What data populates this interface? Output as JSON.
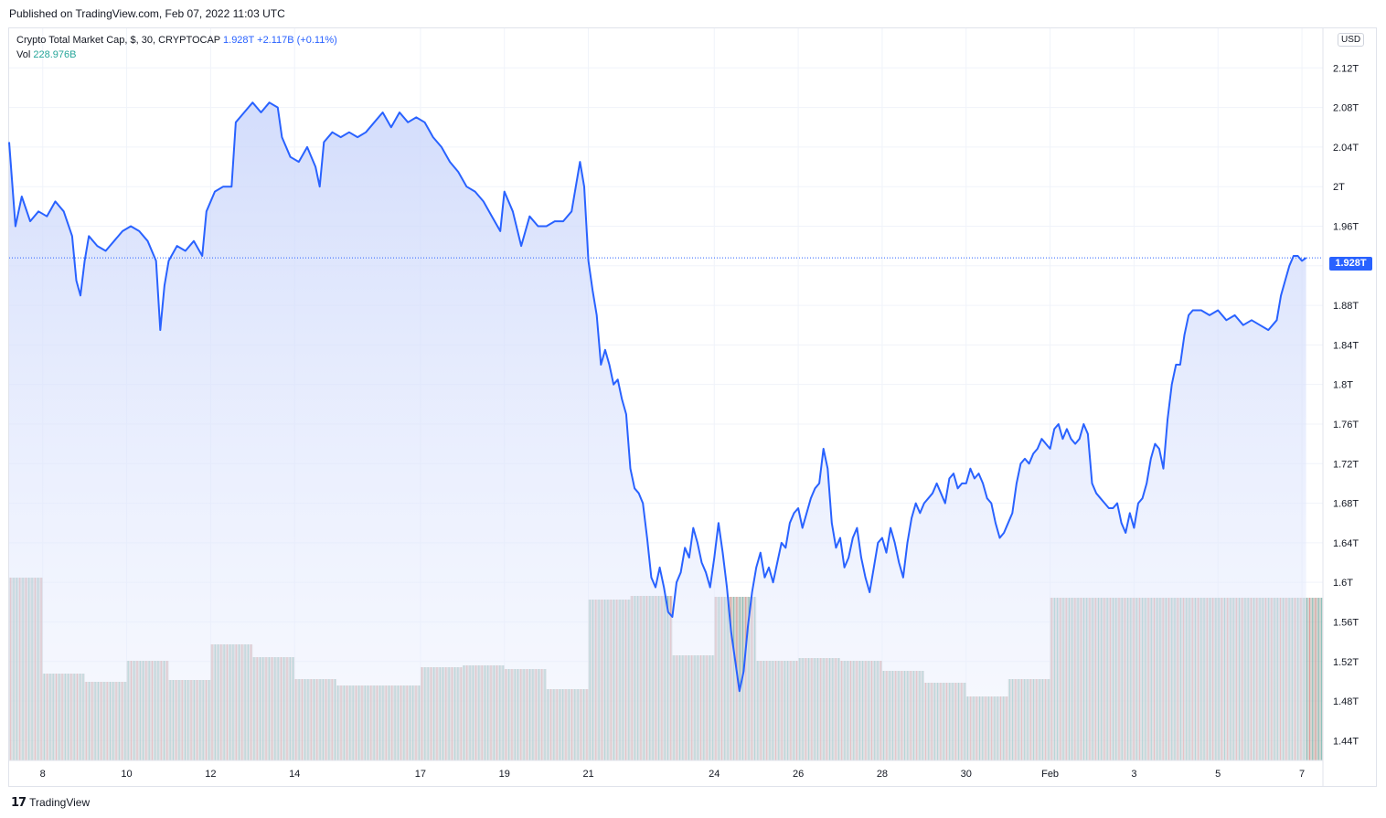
{
  "header": {
    "published": "Published on TradingView.com, Feb 07, 2022 11:03 UTC"
  },
  "legend": {
    "symbol": "Crypto Total Market Cap, $, 30, CRYPTOCAP",
    "last": "1.928T",
    "change": "+2.117B (+0.11%)",
    "vol_label": "Vol",
    "vol_value": "228.976B"
  },
  "price_axis": {
    "currency": "USD",
    "last_badge": "1.928T"
  },
  "footer": {
    "brand": "TradingView",
    "brand_icon": "tradingview-logo-icon"
  },
  "colors": {
    "line": "#2962ff",
    "fill_top": "#c9d5fb",
    "vol_up": "#26a69a",
    "vol_down": "#ef5350"
  },
  "chart_data": {
    "type": "area",
    "title": "Crypto Total Market Cap, $, 30, CRYPTOCAP",
    "unit": "T",
    "ylim": [
      1.42,
      2.16
    ],
    "y_ticks": [
      "2.12T",
      "2.08T",
      "2.04T",
      "2T",
      "1.96T",
      "1.92T",
      "1.88T",
      "1.84T",
      "1.8T",
      "1.76T",
      "1.72T",
      "1.68T",
      "1.64T",
      "1.6T",
      "1.56T",
      "1.52T",
      "1.48T",
      "1.44T"
    ],
    "y_tick_values": [
      2.12,
      2.08,
      2.04,
      2.0,
      1.96,
      1.92,
      1.88,
      1.84,
      1.8,
      1.76,
      1.72,
      1.68,
      1.64,
      1.6,
      1.56,
      1.52,
      1.48,
      1.44
    ],
    "x_ticks": [
      "8",
      "10",
      "12",
      "14",
      "17",
      "19",
      "21",
      "24",
      "26",
      "28",
      "30",
      "Feb",
      "3",
      "5",
      "7"
    ],
    "x_tick_days": [
      8,
      10,
      12,
      14,
      17,
      19,
      21,
      24,
      26,
      28,
      30,
      32,
      34,
      36,
      38
    ],
    "x_range_days": [
      7.2,
      38.5
    ],
    "series": [
      {
        "points": [
          [
            7.2,
            2.045
          ],
          [
            7.35,
            1.96
          ],
          [
            7.5,
            1.99
          ],
          [
            7.7,
            1.965
          ],
          [
            7.9,
            1.975
          ],
          [
            8.1,
            1.97
          ],
          [
            8.3,
            1.985
          ],
          [
            8.5,
            1.975
          ],
          [
            8.7,
            1.95
          ],
          [
            8.8,
            1.905
          ],
          [
            8.9,
            1.89
          ],
          [
            9.0,
            1.925
          ],
          [
            9.1,
            1.95
          ],
          [
            9.3,
            1.94
          ],
          [
            9.5,
            1.935
          ],
          [
            9.7,
            1.945
          ],
          [
            9.9,
            1.955
          ],
          [
            10.1,
            1.96
          ],
          [
            10.3,
            1.955
          ],
          [
            10.5,
            1.945
          ],
          [
            10.7,
            1.925
          ],
          [
            10.8,
            1.855
          ],
          [
            10.9,
            1.9
          ],
          [
            11.0,
            1.925
          ],
          [
            11.2,
            1.94
          ],
          [
            11.4,
            1.935
          ],
          [
            11.6,
            1.945
          ],
          [
            11.8,
            1.93
          ],
          [
            11.9,
            1.975
          ],
          [
            12.1,
            1.995
          ],
          [
            12.3,
            2.0
          ],
          [
            12.5,
            2.0
          ],
          [
            12.6,
            2.065
          ],
          [
            12.8,
            2.075
          ],
          [
            13.0,
            2.085
          ],
          [
            13.2,
            2.075
          ],
          [
            13.4,
            2.085
          ],
          [
            13.6,
            2.08
          ],
          [
            13.7,
            2.05
          ],
          [
            13.9,
            2.03
          ],
          [
            14.1,
            2.025
          ],
          [
            14.3,
            2.04
          ],
          [
            14.5,
            2.02
          ],
          [
            14.6,
            2.0
          ],
          [
            14.7,
            2.045
          ],
          [
            14.9,
            2.055
          ],
          [
            15.1,
            2.05
          ],
          [
            15.3,
            2.055
          ],
          [
            15.5,
            2.05
          ],
          [
            15.7,
            2.055
          ],
          [
            15.9,
            2.065
          ],
          [
            16.1,
            2.075
          ],
          [
            16.3,
            2.06
          ],
          [
            16.5,
            2.075
          ],
          [
            16.7,
            2.065
          ],
          [
            16.9,
            2.07
          ],
          [
            17.1,
            2.065
          ],
          [
            17.3,
            2.05
          ],
          [
            17.5,
            2.04
          ],
          [
            17.7,
            2.025
          ],
          [
            17.9,
            2.015
          ],
          [
            18.1,
            2.0
          ],
          [
            18.3,
            1.995
          ],
          [
            18.5,
            1.985
          ],
          [
            18.7,
            1.97
          ],
          [
            18.9,
            1.955
          ],
          [
            19.0,
            1.995
          ],
          [
            19.2,
            1.975
          ],
          [
            19.4,
            1.94
          ],
          [
            19.6,
            1.97
          ],
          [
            19.8,
            1.96
          ],
          [
            20.0,
            1.96
          ],
          [
            20.2,
            1.965
          ],
          [
            20.4,
            1.965
          ],
          [
            20.6,
            1.975
          ],
          [
            20.8,
            2.025
          ],
          [
            20.9,
            2.0
          ],
          [
            21.0,
            1.925
          ],
          [
            21.1,
            1.895
          ],
          [
            21.2,
            1.87
          ],
          [
            21.3,
            1.82
          ],
          [
            21.4,
            1.835
          ],
          [
            21.5,
            1.82
          ],
          [
            21.6,
            1.8
          ],
          [
            21.7,
            1.805
          ],
          [
            21.8,
            1.785
          ],
          [
            21.9,
            1.77
          ],
          [
            22.0,
            1.715
          ],
          [
            22.1,
            1.695
          ],
          [
            22.2,
            1.69
          ],
          [
            22.3,
            1.68
          ],
          [
            22.4,
            1.645
          ],
          [
            22.5,
            1.605
          ],
          [
            22.6,
            1.595
          ],
          [
            22.7,
            1.615
          ],
          [
            22.8,
            1.595
          ],
          [
            22.9,
            1.57
          ],
          [
            23.0,
            1.565
          ],
          [
            23.1,
            1.6
          ],
          [
            23.2,
            1.61
          ],
          [
            23.3,
            1.635
          ],
          [
            23.4,
            1.625
          ],
          [
            23.5,
            1.655
          ],
          [
            23.6,
            1.64
          ],
          [
            23.7,
            1.62
          ],
          [
            23.8,
            1.61
          ],
          [
            23.9,
            1.595
          ],
          [
            24.0,
            1.625
          ],
          [
            24.1,
            1.66
          ],
          [
            24.2,
            1.63
          ],
          [
            24.3,
            1.595
          ],
          [
            24.4,
            1.55
          ],
          [
            24.5,
            1.52
          ],
          [
            24.6,
            1.49
          ],
          [
            24.7,
            1.51
          ],
          [
            24.8,
            1.555
          ],
          [
            24.9,
            1.59
          ],
          [
            25.0,
            1.615
          ],
          [
            25.1,
            1.63
          ],
          [
            25.2,
            1.605
          ],
          [
            25.3,
            1.615
          ],
          [
            25.4,
            1.6
          ],
          [
            25.5,
            1.62
          ],
          [
            25.6,
            1.64
          ],
          [
            25.7,
            1.635
          ],
          [
            25.8,
            1.66
          ],
          [
            25.9,
            1.67
          ],
          [
            26.0,
            1.675
          ],
          [
            26.1,
            1.655
          ],
          [
            26.2,
            1.67
          ],
          [
            26.3,
            1.685
          ],
          [
            26.4,
            1.695
          ],
          [
            26.5,
            1.7
          ],
          [
            26.6,
            1.735
          ],
          [
            26.7,
            1.715
          ],
          [
            26.8,
            1.66
          ],
          [
            26.9,
            1.635
          ],
          [
            27.0,
            1.645
          ],
          [
            27.1,
            1.615
          ],
          [
            27.2,
            1.625
          ],
          [
            27.3,
            1.645
          ],
          [
            27.4,
            1.655
          ],
          [
            27.5,
            1.625
          ],
          [
            27.6,
            1.605
          ],
          [
            27.7,
            1.59
          ],
          [
            27.8,
            1.615
          ],
          [
            27.9,
            1.64
          ],
          [
            28.0,
            1.645
          ],
          [
            28.1,
            1.63
          ],
          [
            28.2,
            1.655
          ],
          [
            28.3,
            1.64
          ],
          [
            28.4,
            1.62
          ],
          [
            28.5,
            1.605
          ],
          [
            28.6,
            1.64
          ],
          [
            28.7,
            1.665
          ],
          [
            28.8,
            1.68
          ],
          [
            28.9,
            1.67
          ],
          [
            29.0,
            1.68
          ],
          [
            29.1,
            1.685
          ],
          [
            29.2,
            1.69
          ],
          [
            29.3,
            1.7
          ],
          [
            29.4,
            1.69
          ],
          [
            29.5,
            1.68
          ],
          [
            29.6,
            1.705
          ],
          [
            29.7,
            1.71
          ],
          [
            29.8,
            1.695
          ],
          [
            29.9,
            1.7
          ],
          [
            30.0,
            1.7
          ],
          [
            30.1,
            1.715
          ],
          [
            30.2,
            1.705
          ],
          [
            30.3,
            1.71
          ],
          [
            30.4,
            1.7
          ],
          [
            30.5,
            1.685
          ],
          [
            30.6,
            1.68
          ],
          [
            30.7,
            1.66
          ],
          [
            30.8,
            1.645
          ],
          [
            30.9,
            1.65
          ],
          [
            31.0,
            1.66
          ],
          [
            31.1,
            1.67
          ],
          [
            31.2,
            1.7
          ],
          [
            31.3,
            1.72
          ],
          [
            31.4,
            1.725
          ],
          [
            31.5,
            1.72
          ],
          [
            31.6,
            1.73
          ],
          [
            31.7,
            1.735
          ],
          [
            31.8,
            1.745
          ],
          [
            31.9,
            1.74
          ],
          [
            32.0,
            1.735
          ],
          [
            32.1,
            1.755
          ],
          [
            32.2,
            1.76
          ],
          [
            32.3,
            1.745
          ],
          [
            32.4,
            1.755
          ],
          [
            32.5,
            1.745
          ],
          [
            32.6,
            1.74
          ],
          [
            32.7,
            1.745
          ],
          [
            32.8,
            1.76
          ],
          [
            32.9,
            1.75
          ],
          [
            33.0,
            1.7
          ],
          [
            33.1,
            1.69
          ],
          [
            33.2,
            1.685
          ],
          [
            33.3,
            1.68
          ],
          [
            33.4,
            1.675
          ],
          [
            33.5,
            1.675
          ],
          [
            33.6,
            1.68
          ],
          [
            33.7,
            1.66
          ],
          [
            33.8,
            1.65
          ],
          [
            33.9,
            1.67
          ],
          [
            34.0,
            1.655
          ],
          [
            34.1,
            1.68
          ],
          [
            34.2,
            1.685
          ],
          [
            34.3,
            1.7
          ],
          [
            34.4,
            1.725
          ],
          [
            34.5,
            1.74
          ],
          [
            34.6,
            1.735
          ],
          [
            34.7,
            1.715
          ],
          [
            34.8,
            1.765
          ],
          [
            34.9,
            1.8
          ],
          [
            35.0,
            1.82
          ],
          [
            35.1,
            1.82
          ],
          [
            35.2,
            1.85
          ],
          [
            35.3,
            1.87
          ],
          [
            35.4,
            1.875
          ],
          [
            35.6,
            1.875
          ],
          [
            35.8,
            1.87
          ],
          [
            36.0,
            1.875
          ],
          [
            36.2,
            1.865
          ],
          [
            36.4,
            1.87
          ],
          [
            36.6,
            1.86
          ],
          [
            36.8,
            1.865
          ],
          [
            37.0,
            1.86
          ],
          [
            37.2,
            1.855
          ],
          [
            37.4,
            1.865
          ],
          [
            37.5,
            1.89
          ],
          [
            37.6,
            1.905
          ],
          [
            37.7,
            1.92
          ],
          [
            37.8,
            1.93
          ],
          [
            37.9,
            1.93
          ],
          [
            38.0,
            1.925
          ],
          [
            38.1,
            1.928
          ]
        ]
      }
    ],
    "last_value": 1.928,
    "volume": {
      "label": "Vol",
      "blocks": [
        {
          "start": 7.2,
          "end": 8.0,
          "value": 1.0
        },
        {
          "start": 8.0,
          "end": 9.0,
          "value": 0.475
        },
        {
          "start": 9.0,
          "end": 10.0,
          "value": 0.43
        },
        {
          "start": 10.0,
          "end": 11.0,
          "value": 0.545
        },
        {
          "start": 11.0,
          "end": 12.0,
          "value": 0.44
        },
        {
          "start": 12.0,
          "end": 13.0,
          "value": 0.635
        },
        {
          "start": 13.0,
          "end": 14.0,
          "value": 0.565
        },
        {
          "start": 14.0,
          "end": 15.0,
          "value": 0.445
        },
        {
          "start": 15.0,
          "end": 16.0,
          "value": 0.41
        },
        {
          "start": 16.0,
          "end": 17.0,
          "value": 0.41
        },
        {
          "start": 17.0,
          "end": 18.0,
          "value": 0.51
        },
        {
          "start": 18.0,
          "end": 19.0,
          "value": 0.52
        },
        {
          "start": 19.0,
          "end": 20.0,
          "value": 0.5
        },
        {
          "start": 20.0,
          "end": 21.0,
          "value": 0.39
        },
        {
          "start": 21.0,
          "end": 22.0,
          "value": 0.88
        },
        {
          "start": 22.0,
          "end": 23.0,
          "value": 0.9
        },
        {
          "start": 23.0,
          "end": 24.0,
          "value": 0.575
        },
        {
          "start": 24.0,
          "end": 25.0,
          "value": 0.895
        },
        {
          "start": 25.0,
          "end": 26.0,
          "value": 0.545
        },
        {
          "start": 26.0,
          "end": 27.0,
          "value": 0.56
        },
        {
          "start": 27.0,
          "end": 28.0,
          "value": 0.545
        },
        {
          "start": 28.0,
          "end": 29.0,
          "value": 0.49
        },
        {
          "start": 29.0,
          "end": 30.0,
          "value": 0.425
        },
        {
          "start": 30.0,
          "end": 31.0,
          "value": 0.35
        },
        {
          "start": 31.0,
          "end": 32.0,
          "value": 0.445
        },
        {
          "start": 32.0,
          "end": 38.5,
          "value": 0.89
        }
      ]
    }
  }
}
